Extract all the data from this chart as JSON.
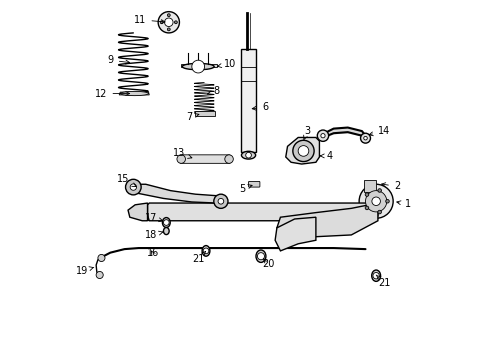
{
  "title": "",
  "background_color": "#ffffff",
  "line_color": "#000000",
  "figure_width": 4.9,
  "figure_height": 3.6,
  "dpi": 100,
  "font_size": 7,
  "arrow_color": "#000000",
  "lw_main": 1.0,
  "lw_thick": 1.5,
  "lw_thin": 0.6
}
